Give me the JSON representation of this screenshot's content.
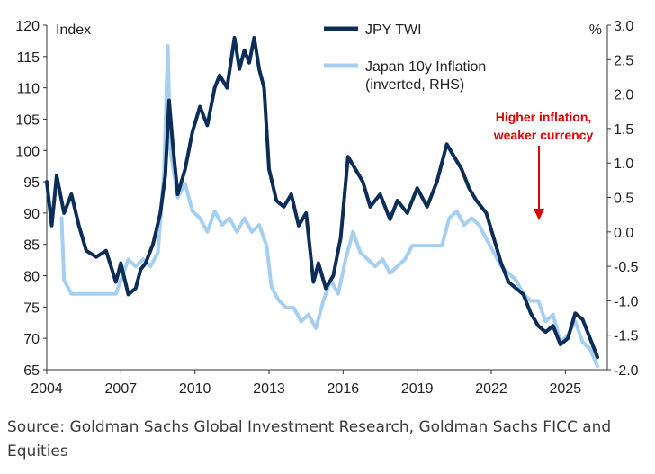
{
  "chart_data": {
    "type": "line",
    "left_axis": {
      "unit_label": "Index",
      "ylim": [
        65,
        120
      ],
      "ticks": [
        65,
        70,
        75,
        80,
        85,
        90,
        95,
        100,
        105,
        110,
        115,
        120
      ]
    },
    "right_axis": {
      "unit_label": "%",
      "ylim": [
        -2.0,
        3.0
      ],
      "inverted": true,
      "ticks": [
        3.0,
        2.5,
        2.0,
        1.5,
        1.0,
        0.5,
        0.0,
        -0.5,
        -1.0,
        -1.5,
        -2.0
      ],
      "tick_labels": [
        "3.0",
        "2.5",
        "2.0",
        "1.5",
        "1.0",
        "0.5",
        "0.0",
        "-0.5",
        "-1.0",
        "-1.5",
        "-2.0"
      ]
    },
    "x_axis": {
      "xlim": [
        2004,
        2026.7
      ],
      "ticks": [
        2004,
        2007,
        2010,
        2013,
        2016,
        2019,
        2022,
        2025
      ],
      "tick_labels": [
        "2004",
        "2007",
        "2010",
        "2013",
        "2016",
        "2019",
        "2022",
        "2025"
      ]
    },
    "series": [
      {
        "name": "JPY TWI",
        "axis": "left",
        "color": "#0c2d57",
        "x": [
          2004.0,
          2004.2,
          2004.4,
          2004.7,
          2005.0,
          2005.3,
          2005.6,
          2006.0,
          2006.4,
          2006.8,
          2007.0,
          2007.3,
          2007.6,
          2007.8,
          2008.0,
          2008.3,
          2008.6,
          2008.8,
          2008.95,
          2009.1,
          2009.3,
          2009.6,
          2009.9,
          2010.2,
          2010.5,
          2010.8,
          2011.0,
          2011.3,
          2011.6,
          2011.8,
          2012.0,
          2012.2,
          2012.4,
          2012.6,
          2012.8,
          2013.0,
          2013.3,
          2013.6,
          2013.9,
          2014.2,
          2014.5,
          2014.8,
          2015.0,
          2015.3,
          2015.6,
          2015.9,
          2016.2,
          2016.5,
          2016.8,
          2017.1,
          2017.5,
          2017.9,
          2018.2,
          2018.6,
          2019.0,
          2019.4,
          2019.8,
          2020.2,
          2020.5,
          2020.8,
          2021.1,
          2021.4,
          2021.8,
          2022.1,
          2022.4,
          2022.7,
          2023.0,
          2023.3,
          2023.6,
          2023.9,
          2024.2,
          2024.5,
          2024.8,
          2025.1,
          2025.4,
          2025.7,
          2026.0,
          2026.3
        ],
        "y": [
          95,
          88,
          96,
          90,
          93,
          88,
          84,
          83,
          84,
          79,
          82,
          77,
          78,
          81,
          82,
          85,
          90,
          96,
          108,
          101,
          93,
          97,
          103,
          107,
          104,
          110,
          112,
          110,
          118,
          113,
          116,
          114,
          118,
          113,
          110,
          97,
          92,
          91,
          93,
          88,
          90,
          79,
          82,
          78,
          80,
          86,
          99,
          97,
          95,
          91,
          93,
          89,
          92,
          90,
          94,
          91,
          95,
          101,
          99,
          97,
          94,
          92,
          90,
          86,
          82,
          79,
          78,
          77,
          74,
          72,
          71,
          72,
          69,
          70,
          74,
          73,
          70,
          67
        ]
      },
      {
        "name": "Japan 10y Inflation\n(inverted, RHS)",
        "axis": "right",
        "color": "#a5cff1",
        "x": [
          2004.6,
          2004.7,
          2005.0,
          2005.5,
          2006.0,
          2006.5,
          2006.8,
          2007.0,
          2007.3,
          2007.6,
          2007.9,
          2008.2,
          2008.5,
          2008.75,
          2008.9,
          2009.0,
          2009.3,
          2009.6,
          2009.9,
          2010.2,
          2010.5,
          2010.8,
          2011.1,
          2011.4,
          2011.7,
          2012.0,
          2012.3,
          2012.6,
          2012.9,
          2013.1,
          2013.4,
          2013.7,
          2014.0,
          2014.3,
          2014.6,
          2014.9,
          2015.2,
          2015.5,
          2015.8,
          2016.1,
          2016.4,
          2016.7,
          2017.0,
          2017.3,
          2017.6,
          2017.9,
          2018.2,
          2018.5,
          2018.8,
          2019.1,
          2019.4,
          2019.7,
          2020.0,
          2020.3,
          2020.6,
          2020.9,
          2021.2,
          2021.5,
          2021.8,
          2022.1,
          2022.4,
          2022.7,
          2023.0,
          2023.3,
          2023.6,
          2023.9,
          2024.2,
          2024.5,
          2024.8,
          2025.1,
          2025.4,
          2025.7,
          2026.0,
          2026.3
        ],
        "y": [
          0.2,
          -0.7,
          -0.9,
          -0.9,
          -0.9,
          -0.9,
          -0.9,
          -0.7,
          -0.4,
          -0.5,
          -0.4,
          -0.5,
          -0.3,
          0.9,
          2.7,
          1.2,
          0.5,
          0.7,
          0.3,
          0.2,
          0.0,
          0.3,
          0.1,
          0.2,
          0.0,
          0.2,
          0.0,
          0.1,
          -0.2,
          -0.8,
          -1.0,
          -1.1,
          -1.1,
          -1.3,
          -1.2,
          -1.4,
          -1.0,
          -0.7,
          -0.9,
          -0.4,
          0.0,
          -0.3,
          -0.4,
          -0.5,
          -0.4,
          -0.6,
          -0.5,
          -0.4,
          -0.2,
          -0.2,
          -0.2,
          -0.2,
          -0.2,
          0.2,
          0.3,
          0.1,
          0.2,
          0.1,
          -0.1,
          -0.3,
          -0.5,
          -0.6,
          -0.7,
          -0.9,
          -1.0,
          -1.0,
          -1.3,
          -1.2,
          -1.6,
          -1.5,
          -1.3,
          -1.6,
          -1.7,
          -1.95
        ]
      }
    ],
    "annotation": {
      "text_lines": [
        "Higher inflation,",
        "weaker currency"
      ],
      "color": "#e00000",
      "arrow": "down"
    },
    "legend_placement": "top-center",
    "grid": false
  },
  "source": "Source: Goldman Sachs Global Investment Research, Goldman Sachs FICC and Equities"
}
